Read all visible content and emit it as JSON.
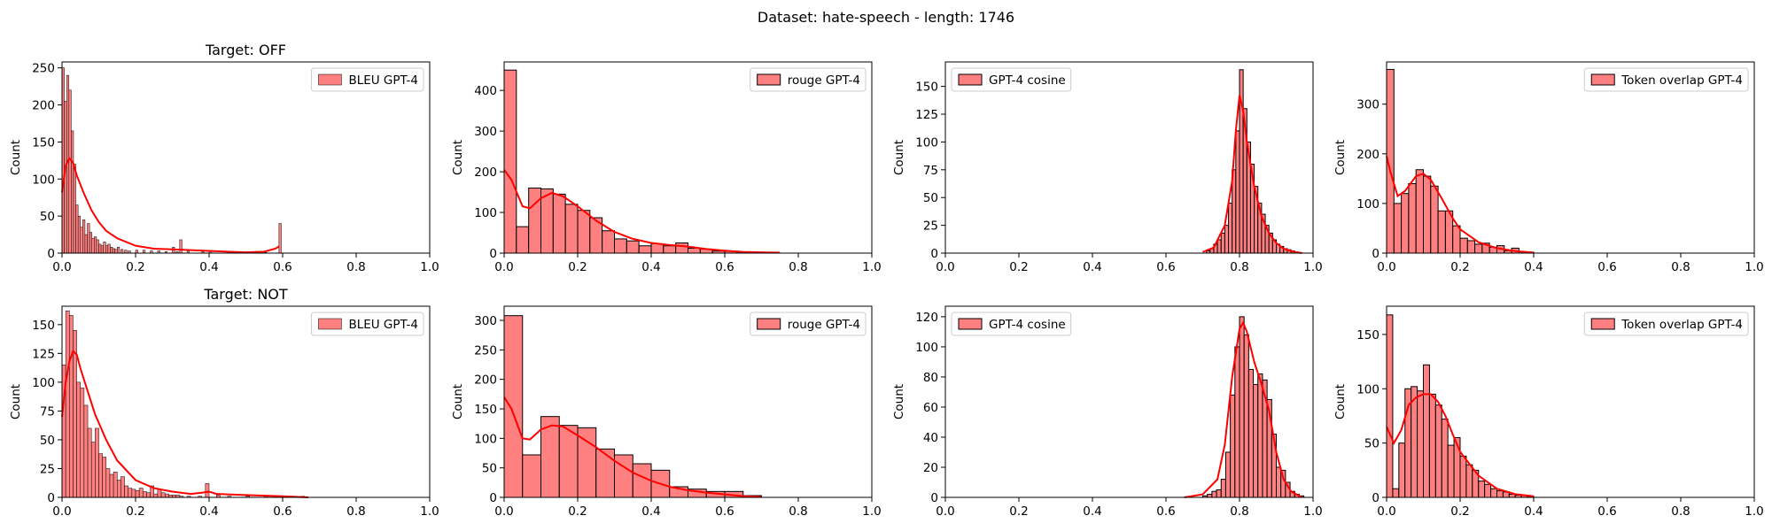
{
  "figure": {
    "suptitle": "Dataset: hate-speech - length: 1746"
  },
  "colors": {
    "bar_fill": "#ff8080",
    "bar_edge": "#000000",
    "kde": "#ff0000",
    "axes": "#000000"
  },
  "chart_data": [
    {
      "type": "histogram",
      "title": "Target: OFF",
      "ylabel": "Count",
      "legend": "BLEU GPT-4",
      "legend_loc": "upper right",
      "edge": "thin",
      "bin_width": 0.00625,
      "xlim": [
        0,
        1
      ],
      "ylim": [
        0,
        258
      ],
      "xticks": [
        0,
        0.2,
        0.4,
        0.6,
        0.8,
        1.0
      ],
      "xtick_labels": [
        "0.0",
        "0.2",
        "0.4",
        "0.6",
        "0.8",
        "1.0"
      ],
      "yticks": [
        0,
        50,
        100,
        150,
        200,
        250
      ],
      "ytick_labels": [
        "0",
        "50",
        "100",
        "150",
        "200",
        "250"
      ],
      "bin_starts": [
        0,
        0.00625,
        0.0125,
        0.01875,
        0.025,
        0.03125,
        0.0375,
        0.04375,
        0.05,
        0.05625,
        0.0625,
        0.06875,
        0.075,
        0.08125,
        0.0875,
        0.09375,
        0.1,
        0.10625,
        0.1125,
        0.11875,
        0.125,
        0.13125,
        0.1375,
        0.14375,
        0.15,
        0.16,
        0.17,
        0.18,
        0.2,
        0.22,
        0.24,
        0.26,
        0.28,
        0.3,
        0.31,
        0.32,
        0.34,
        0.38,
        0.4,
        0.45,
        0.5,
        0.55,
        0.59
      ],
      "counts": [
        250,
        205,
        240,
        220,
        165,
        120,
        65,
        50,
        35,
        45,
        25,
        40,
        28,
        20,
        22,
        18,
        12,
        10,
        15,
        10,
        12,
        8,
        6,
        5,
        8,
        5,
        4,
        3,
        4,
        4,
        3,
        3,
        2,
        8,
        2,
        18,
        3,
        2,
        3,
        2,
        1,
        1,
        40
      ],
      "kde": [
        [
          0,
          82
        ],
        [
          0.01,
          118
        ],
        [
          0.02,
          128
        ],
        [
          0.03,
          122
        ],
        [
          0.04,
          105
        ],
        [
          0.06,
          80
        ],
        [
          0.08,
          58
        ],
        [
          0.1,
          42
        ],
        [
          0.12,
          30
        ],
        [
          0.15,
          20
        ],
        [
          0.2,
          10
        ],
        [
          0.25,
          6
        ],
        [
          0.3,
          5
        ],
        [
          0.35,
          4
        ],
        [
          0.4,
          3
        ],
        [
          0.45,
          2
        ],
        [
          0.5,
          1
        ],
        [
          0.55,
          2
        ],
        [
          0.58,
          6
        ],
        [
          0.59,
          9
        ]
      ]
    },
    {
      "type": "histogram",
      "title": "",
      "ylabel": "Count",
      "legend": "rouge GPT-4",
      "legend_loc": "upper right",
      "edge": "thick",
      "bin_width": 0.0333,
      "xlim": [
        0,
        1
      ],
      "ylim": [
        0,
        470
      ],
      "xticks": [
        0,
        0.2,
        0.4,
        0.6,
        0.8,
        1.0
      ],
      "xtick_labels": [
        "0.0",
        "0.2",
        "0.4",
        "0.6",
        "0.8",
        "1.0"
      ],
      "yticks": [
        0,
        100,
        200,
        300,
        400
      ],
      "ytick_labels": [
        "0",
        "100",
        "200",
        "300",
        "400"
      ],
      "bin_starts": [
        0,
        0.0333,
        0.0667,
        0.1,
        0.1333,
        0.1667,
        0.2,
        0.2333,
        0.2667,
        0.3,
        0.3333,
        0.3667,
        0.4,
        0.4333,
        0.4667,
        0.5,
        0.5333,
        0.5667,
        0.6,
        0.6333,
        0.6667,
        0.7
      ],
      "counts": [
        450,
        65,
        160,
        158,
        145,
        120,
        105,
        87,
        55,
        35,
        30,
        18,
        23,
        18,
        25,
        12,
        10,
        5,
        5,
        3,
        2,
        1
      ],
      "kde": [
        [
          0,
          205
        ],
        [
          0.02,
          180
        ],
        [
          0.05,
          115
        ],
        [
          0.07,
          110
        ],
        [
          0.1,
          135
        ],
        [
          0.13,
          148
        ],
        [
          0.16,
          140
        ],
        [
          0.2,
          115
        ],
        [
          0.25,
          80
        ],
        [
          0.3,
          52
        ],
        [
          0.35,
          35
        ],
        [
          0.4,
          25
        ],
        [
          0.45,
          20
        ],
        [
          0.5,
          16
        ],
        [
          0.55,
          10
        ],
        [
          0.6,
          6
        ],
        [
          0.65,
          3
        ],
        [
          0.7,
          2
        ],
        [
          0.75,
          1
        ]
      ]
    },
    {
      "type": "histogram",
      "title": "",
      "ylabel": "Count",
      "legend": "GPT-4 cosine",
      "legend_loc": "upper left",
      "edge": "thick",
      "bin_width": 0.01,
      "xlim": [
        0,
        1
      ],
      "ylim": [
        0,
        172
      ],
      "xticks": [
        0,
        0.2,
        0.4,
        0.6,
        0.8,
        1.0
      ],
      "xtick_labels": [
        "0.0",
        "0.2",
        "0.4",
        "0.6",
        "0.8",
        "1.0"
      ],
      "yticks": [
        0,
        25,
        50,
        75,
        100,
        125,
        150
      ],
      "ytick_labels": [
        "0",
        "25",
        "50",
        "75",
        "100",
        "125",
        "150"
      ],
      "bin_starts": [
        0.71,
        0.72,
        0.73,
        0.74,
        0.75,
        0.76,
        0.77,
        0.78,
        0.79,
        0.8,
        0.81,
        0.82,
        0.83,
        0.84,
        0.85,
        0.86,
        0.87,
        0.88,
        0.89,
        0.9,
        0.91,
        0.92,
        0.93,
        0.94,
        0.95
      ],
      "counts": [
        2,
        4,
        8,
        12,
        18,
        25,
        45,
        75,
        110,
        165,
        130,
        100,
        80,
        60,
        45,
        35,
        25,
        18,
        12,
        8,
        6,
        4,
        3,
        2,
        1
      ],
      "kde": [
        [
          0.7,
          1
        ],
        [
          0.73,
          5
        ],
        [
          0.76,
          25
        ],
        [
          0.78,
          65
        ],
        [
          0.79,
          110
        ],
        [
          0.8,
          142
        ],
        [
          0.81,
          128
        ],
        [
          0.82,
          100
        ],
        [
          0.84,
          60
        ],
        [
          0.86,
          33
        ],
        [
          0.88,
          18
        ],
        [
          0.9,
          9
        ],
        [
          0.92,
          4
        ],
        [
          0.95,
          1
        ],
        [
          0.97,
          0
        ]
      ]
    },
    {
      "type": "histogram",
      "title": "",
      "ylabel": "Count",
      "legend": "Token overlap GPT-4",
      "legend_loc": "upper right",
      "edge": "thick",
      "bin_width": 0.02,
      "xlim": [
        0,
        1
      ],
      "ylim": [
        0,
        385
      ],
      "xticks": [
        0,
        0.2,
        0.4,
        0.6,
        0.8,
        1.0
      ],
      "xtick_labels": [
        "0.0",
        "0.2",
        "0.4",
        "0.6",
        "0.8",
        "1.0"
      ],
      "yticks": [
        0,
        100,
        200,
        300
      ],
      "ytick_labels": [
        "0",
        "100",
        "200",
        "300"
      ],
      "bin_starts": [
        0,
        0.02,
        0.04,
        0.06,
        0.08,
        0.1,
        0.12,
        0.14,
        0.16,
        0.18,
        0.2,
        0.22,
        0.24,
        0.26,
        0.28,
        0.3,
        0.32,
        0.34,
        0.36,
        0.38
      ],
      "counts": [
        370,
        100,
        120,
        140,
        168,
        155,
        135,
        85,
        85,
        55,
        30,
        25,
        18,
        20,
        12,
        15,
        5,
        10,
        3,
        2
      ],
      "kde": [
        [
          0,
          195
        ],
        [
          0.01,
          165
        ],
        [
          0.03,
          115
        ],
        [
          0.05,
          125
        ],
        [
          0.08,
          155
        ],
        [
          0.1,
          160
        ],
        [
          0.12,
          148
        ],
        [
          0.15,
          110
        ],
        [
          0.18,
          70
        ],
        [
          0.2,
          48
        ],
        [
          0.25,
          22
        ],
        [
          0.3,
          10
        ],
        [
          0.35,
          4
        ],
        [
          0.4,
          1
        ]
      ]
    },
    {
      "type": "histogram",
      "title": "Target: NOT",
      "ylabel": "Count",
      "legend": "BLEU GPT-4",
      "legend_loc": "upper right",
      "edge": "thin",
      "bin_width": 0.01,
      "xlim": [
        0,
        1
      ],
      "ylim": [
        0,
        166
      ],
      "xticks": [
        0,
        0.2,
        0.4,
        0.6,
        0.8,
        1.0
      ],
      "xtick_labels": [
        "0.0",
        "0.2",
        "0.4",
        "0.6",
        "0.8",
        "1.0"
      ],
      "yticks": [
        0,
        25,
        50,
        75,
        100,
        125,
        150
      ],
      "ytick_labels": [
        "0",
        "25",
        "50",
        "75",
        "100",
        "125",
        "150"
      ],
      "bin_starts": [
        0,
        0.01,
        0.02,
        0.03,
        0.04,
        0.05,
        0.06,
        0.07,
        0.08,
        0.09,
        0.1,
        0.11,
        0.12,
        0.13,
        0.14,
        0.15,
        0.16,
        0.17,
        0.18,
        0.19,
        0.2,
        0.21,
        0.22,
        0.23,
        0.24,
        0.25,
        0.26,
        0.27,
        0.28,
        0.29,
        0.3,
        0.31,
        0.32,
        0.34,
        0.37,
        0.39,
        0.42,
        0.45,
        0.5,
        0.55,
        0.6,
        0.65
      ],
      "counts": [
        115,
        162,
        158,
        145,
        100,
        95,
        80,
        60,
        48,
        60,
        38,
        35,
        25,
        20,
        22,
        15,
        18,
        10,
        8,
        7,
        6,
        8,
        5,
        4,
        10,
        3,
        7,
        4,
        3,
        2,
        2,
        2,
        1,
        1,
        1,
        12,
        2,
        1,
        1,
        1,
        1,
        1
      ],
      "kde": [
        [
          0,
          70
        ],
        [
          0.01,
          100
        ],
        [
          0.02,
          118
        ],
        [
          0.03,
          127
        ],
        [
          0.04,
          124
        ],
        [
          0.05,
          112
        ],
        [
          0.07,
          92
        ],
        [
          0.09,
          72
        ],
        [
          0.12,
          50
        ],
        [
          0.15,
          32
        ],
        [
          0.2,
          15
        ],
        [
          0.25,
          8
        ],
        [
          0.3,
          5
        ],
        [
          0.35,
          3
        ],
        [
          0.38,
          4
        ],
        [
          0.4,
          5
        ],
        [
          0.42,
          3
        ],
        [
          0.5,
          2
        ],
        [
          0.6,
          1
        ],
        [
          0.67,
          0
        ]
      ]
    },
    {
      "type": "histogram",
      "title": "",
      "ylabel": "Count",
      "legend": "rouge GPT-4",
      "legend_loc": "upper right",
      "edge": "thick",
      "bin_width": 0.05,
      "xlim": [
        0,
        1
      ],
      "ylim": [
        0,
        324
      ],
      "xticks": [
        0,
        0.2,
        0.4,
        0.6,
        0.8,
        1.0
      ],
      "xtick_labels": [
        "0.0",
        "0.2",
        "0.4",
        "0.6",
        "0.8",
        "1.0"
      ],
      "yticks": [
        0,
        50,
        100,
        150,
        200,
        250,
        300
      ],
      "ytick_labels": [
        "0",
        "50",
        "100",
        "150",
        "200",
        "250",
        "300"
      ],
      "bin_starts": [
        0,
        0.05,
        0.1,
        0.15,
        0.2,
        0.25,
        0.3,
        0.35,
        0.4,
        0.45,
        0.5,
        0.55,
        0.6,
        0.65
      ],
      "counts": [
        308,
        72,
        137,
        122,
        118,
        82,
        72,
        57,
        46,
        18,
        14,
        10,
        10,
        3
      ],
      "kde": [
        [
          0,
          170
        ],
        [
          0.02,
          150
        ],
        [
          0.05,
          100
        ],
        [
          0.07,
          98
        ],
        [
          0.1,
          115
        ],
        [
          0.13,
          122
        ],
        [
          0.16,
          120
        ],
        [
          0.2,
          105
        ],
        [
          0.25,
          85
        ],
        [
          0.3,
          62
        ],
        [
          0.35,
          42
        ],
        [
          0.4,
          28
        ],
        [
          0.45,
          18
        ],
        [
          0.5,
          12
        ],
        [
          0.55,
          8
        ],
        [
          0.6,
          5
        ],
        [
          0.65,
          2
        ],
        [
          0.7,
          1
        ]
      ]
    },
    {
      "type": "histogram",
      "title": "",
      "ylabel": "Count",
      "legend": "GPT-4 cosine",
      "legend_loc": "upper left",
      "edge": "thick",
      "bin_width": 0.0125,
      "xlim": [
        0,
        1
      ],
      "ylim": [
        0,
        127
      ],
      "xticks": [
        0,
        0.2,
        0.4,
        0.6,
        0.8,
        1.0
      ],
      "xtick_labels": [
        "0.0",
        "0.2",
        "0.4",
        "0.6",
        "0.8",
        "1.0"
      ],
      "yticks": [
        0,
        20,
        40,
        60,
        80,
        100,
        120
      ],
      "ytick_labels": [
        "0",
        "20",
        "40",
        "60",
        "80",
        "100",
        "120"
      ],
      "bin_starts": [
        0.7,
        0.7125,
        0.725,
        0.7375,
        0.75,
        0.7625,
        0.775,
        0.7875,
        0.8,
        0.8125,
        0.825,
        0.8375,
        0.85,
        0.8625,
        0.875,
        0.8875,
        0.9,
        0.9125,
        0.925,
        0.9375,
        0.95,
        0.9625
      ],
      "counts": [
        1,
        2,
        4,
        5,
        12,
        30,
        68,
        100,
        120,
        108,
        85,
        75,
        82,
        78,
        65,
        42,
        20,
        18,
        10,
        4,
        2,
        1
      ],
      "kde": [
        [
          0.65,
          0
        ],
        [
          0.7,
          2
        ],
        [
          0.74,
          12
        ],
        [
          0.76,
          35
        ],
        [
          0.78,
          80
        ],
        [
          0.8,
          112
        ],
        [
          0.81,
          116
        ],
        [
          0.82,
          110
        ],
        [
          0.84,
          90
        ],
        [
          0.86,
          75
        ],
        [
          0.88,
          58
        ],
        [
          0.9,
          30
        ],
        [
          0.92,
          12
        ],
        [
          0.94,
          4
        ],
        [
          0.97,
          0
        ]
      ]
    },
    {
      "type": "histogram",
      "title": "",
      "ylabel": "Count",
      "legend": "Token overlap GPT-4",
      "legend_loc": "upper right",
      "edge": "thick",
      "bin_width": 0.01667,
      "xlim": [
        0,
        1
      ],
      "ylim": [
        0,
        176
      ],
      "xticks": [
        0,
        0.2,
        0.4,
        0.6,
        0.8,
        1.0
      ],
      "xtick_labels": [
        "0.0",
        "0.2",
        "0.4",
        "0.6",
        "0.8",
        "1.0"
      ],
      "yticks": [
        0,
        50,
        100,
        150
      ],
      "ytick_labels": [
        "0",
        "50",
        "100",
        "150"
      ],
      "bin_starts": [
        0,
        0.01667,
        0.03333,
        0.05,
        0.06667,
        0.08333,
        0.1,
        0.11667,
        0.13333,
        0.15,
        0.16667,
        0.18333,
        0.2,
        0.21667,
        0.23333,
        0.25,
        0.26667,
        0.28333,
        0.3,
        0.31667,
        0.33333,
        0.35,
        0.36667,
        0.38333
      ],
      "counts": [
        168,
        8,
        50,
        100,
        102,
        98,
        122,
        95,
        85,
        72,
        48,
        55,
        38,
        30,
        25,
        15,
        12,
        8,
        6,
        5,
        3,
        2,
        2,
        1
      ],
      "kde": [
        [
          0,
          65
        ],
        [
          0.02,
          50
        ],
        [
          0.04,
          62
        ],
        [
          0.06,
          85
        ],
        [
          0.08,
          92
        ],
        [
          0.1,
          95
        ],
        [
          0.12,
          95
        ],
        [
          0.14,
          88
        ],
        [
          0.16,
          75
        ],
        [
          0.18,
          58
        ],
        [
          0.2,
          42
        ],
        [
          0.25,
          20
        ],
        [
          0.3,
          8
        ],
        [
          0.35,
          3
        ],
        [
          0.4,
          1
        ]
      ]
    }
  ]
}
